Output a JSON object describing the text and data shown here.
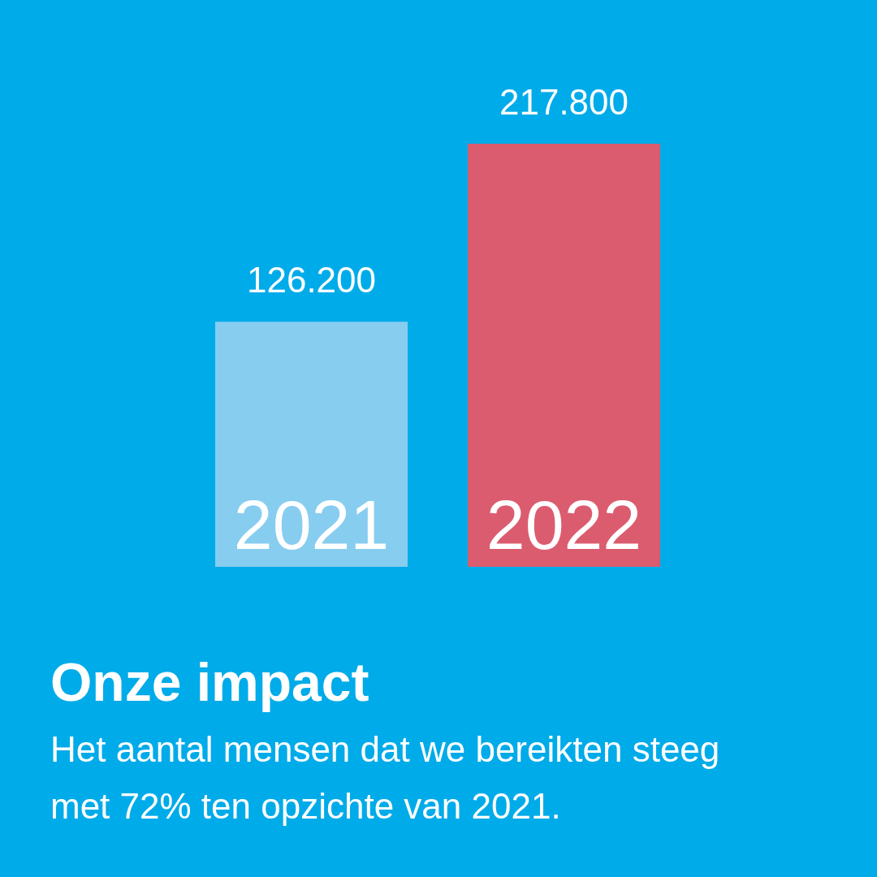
{
  "chart_data": {
    "type": "bar",
    "title": "Onze impact",
    "subtitle": "Het aantal mensen dat we bereikten steeg met 72% ten opzichte van 2021.",
    "categories": [
      "2021",
      "2022"
    ],
    "values": [
      126200,
      217800
    ],
    "colors": [
      "#87cdf0",
      "#db5c6e"
    ],
    "value_labels": [
      "126.200",
      "217.800"
    ]
  }
}
